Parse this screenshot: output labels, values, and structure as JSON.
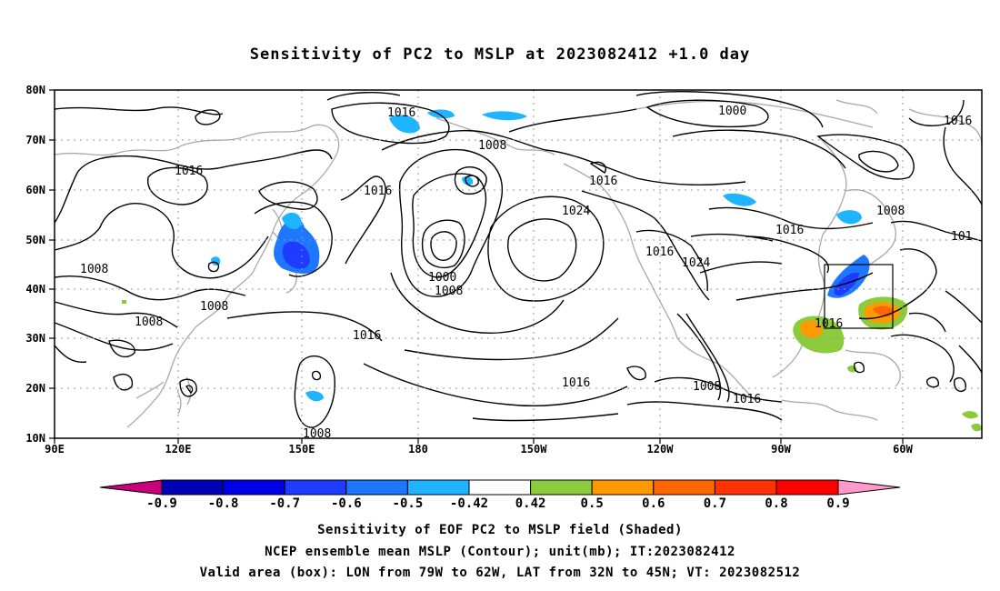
{
  "title": "Sensitivity of PC2 to MSLP at 2023082412 +1.0 day",
  "map": {
    "lon_range": [
      "90E",
      "50W"
    ],
    "lat_range": [
      "10N",
      "80N"
    ],
    "x_ticks": [
      "90E",
      "120E",
      "150E",
      "180",
      "150W",
      "120W",
      "90W",
      "60W"
    ],
    "y_ticks": [
      "10N",
      "20N",
      "30N",
      "40N",
      "50N",
      "60N",
      "70N",
      "80N"
    ],
    "grid": "dotted",
    "valid_box": {
      "lon": [
        "79W",
        "62W"
      ],
      "lat": [
        "32N",
        "45N"
      ]
    }
  },
  "contour_labels": [
    {
      "text": "1016"
    },
    {
      "text": "1016"
    },
    {
      "text": "1016"
    },
    {
      "text": "1016"
    },
    {
      "text": "1016"
    },
    {
      "text": "1016"
    },
    {
      "text": "1016"
    },
    {
      "text": "1016"
    },
    {
      "text": "1016"
    },
    {
      "text": "1016"
    },
    {
      "text": "1016"
    },
    {
      "text": "1008"
    },
    {
      "text": "1008"
    },
    {
      "text": "1008"
    },
    {
      "text": "1008"
    },
    {
      "text": "1008"
    },
    {
      "text": "1008"
    },
    {
      "text": "1008"
    },
    {
      "text": "1008"
    },
    {
      "text": "1000"
    },
    {
      "text": "1000"
    },
    {
      "text": "1024"
    },
    {
      "text": "1024"
    },
    {
      "text": "101"
    }
  ],
  "colorbar": {
    "labels": [
      "-0.9",
      "-0.8",
      "-0.7",
      "-0.6",
      "-0.5",
      "-0.42",
      "0.42",
      "0.5",
      "0.6",
      "0.7",
      "0.8",
      "0.9"
    ],
    "colors": [
      "#c8007a",
      "#0000b4",
      "#0000e6",
      "#1e3cff",
      "#1e78ff",
      "#1eb4ff",
      "#ffffff",
      "#8ccc3c",
      "#ff9900",
      "#ff6600",
      "#ff3300",
      "#ff0000",
      "#ff99cc"
    ]
  },
  "captions": {
    "line1": "Sensitivity of EOF PC2 to MSLP field (Shaded)",
    "line2": "NCEP ensemble mean MSLP (Contour); unit(mb); IT:2023082412",
    "line3": "Valid area (box): LON from 79W to 62W, LAT from 32N to 45N; VT: 2023082512"
  }
}
